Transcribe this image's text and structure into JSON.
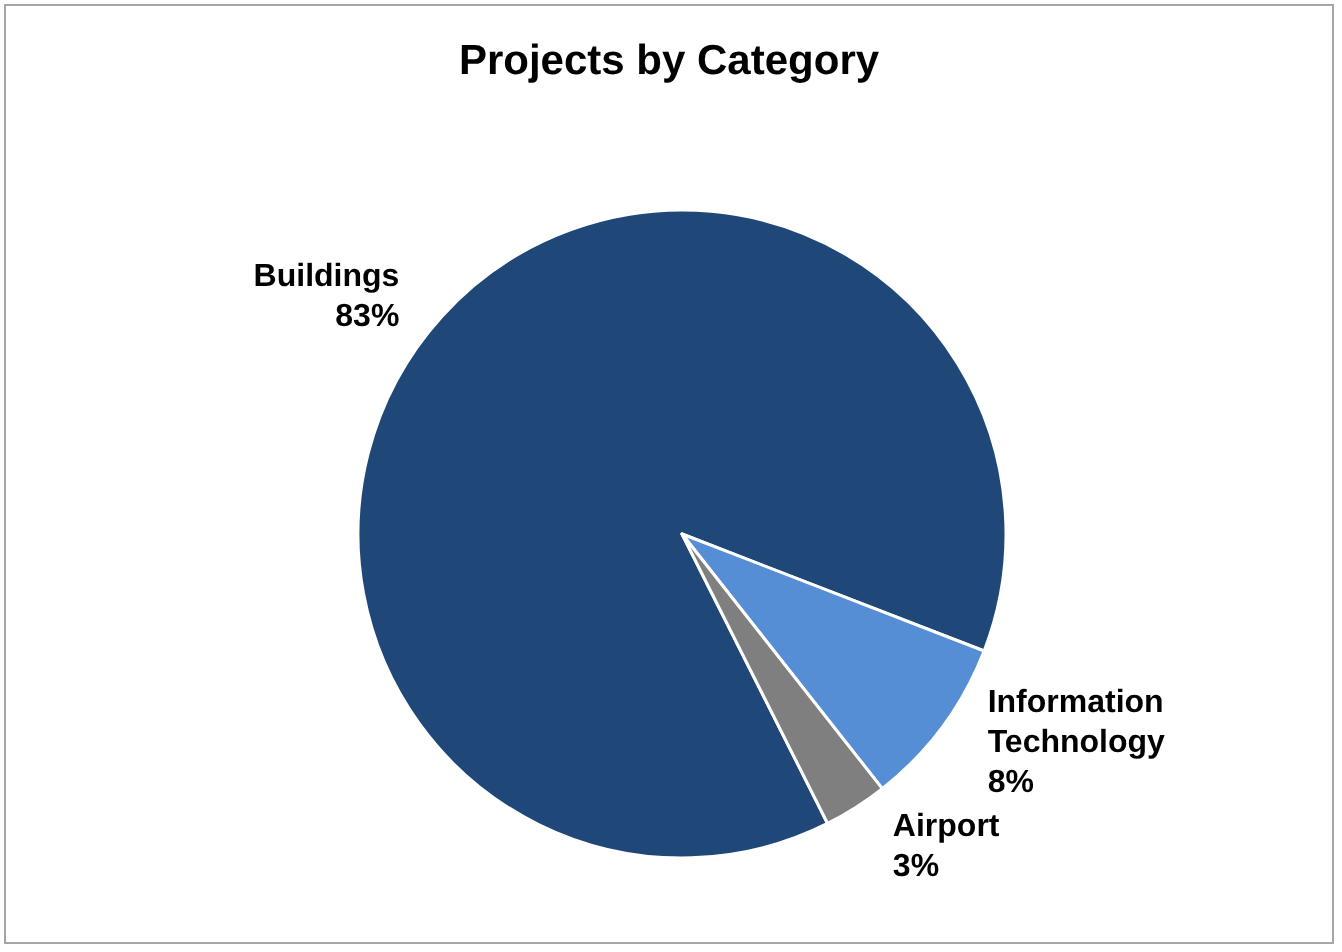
{
  "chart_data": {
    "type": "pie",
    "title": "Projects by Category",
    "categories": [
      "Buildings",
      "Information Technology",
      "Airport"
    ],
    "values": [
      83,
      8,
      3
    ],
    "colors": [
      "#1f4778",
      "#558ed5",
      "#7f7f7f"
    ],
    "value_labels": [
      "83%",
      "8%",
      "3%"
    ],
    "legend": false
  }
}
